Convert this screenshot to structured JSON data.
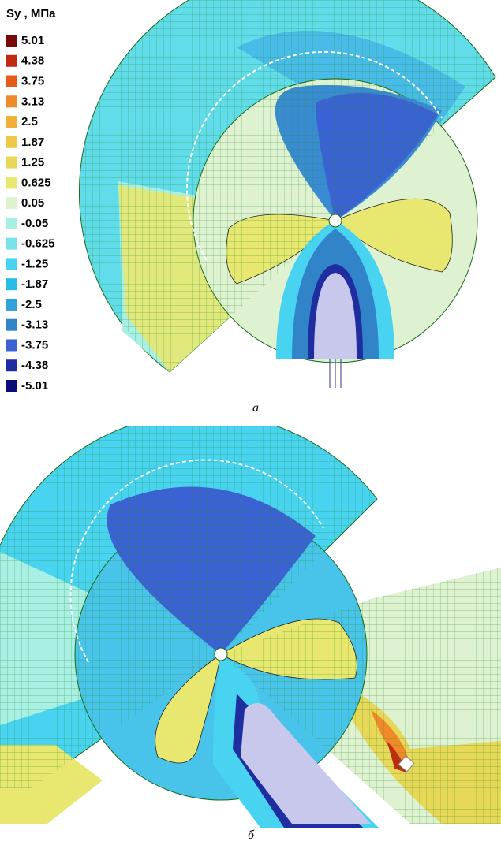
{
  "legend": {
    "title": "Sy , МПа",
    "items": [
      {
        "label": "5.01",
        "color": "#7a0a0a"
      },
      {
        "label": "4.38",
        "color": "#c02a10"
      },
      {
        "label": "3.75",
        "color": "#e85a18"
      },
      {
        "label": "3.13",
        "color": "#f08a28"
      },
      {
        "label": "2.5",
        "color": "#f0b038"
      },
      {
        "label": "1.87",
        "color": "#f0c848"
      },
      {
        "label": "1.25",
        "color": "#e8d858"
      },
      {
        "label": "0.625",
        "color": "#e8e870"
      },
      {
        "label": "0.05",
        "color": "#def2d2"
      },
      {
        "label": "-0.05",
        "color": "#a8f0e4"
      },
      {
        "label": "-0.625",
        "color": "#78e4ea"
      },
      {
        "label": "-1.25",
        "color": "#48d4f0"
      },
      {
        "label": "-1.87",
        "color": "#28bce8"
      },
      {
        "label": "-2.5",
        "color": "#30a4d8"
      },
      {
        "label": "-3.13",
        "color": "#3284c8"
      },
      {
        "label": "-3.75",
        "color": "#3a62d2"
      },
      {
        "label": "-4.38",
        "color": "#1e2ea0"
      },
      {
        "label": "-5.01",
        "color": "#0c0c78"
      }
    ]
  },
  "captions": {
    "a": "а",
    "b": "б"
  }
}
